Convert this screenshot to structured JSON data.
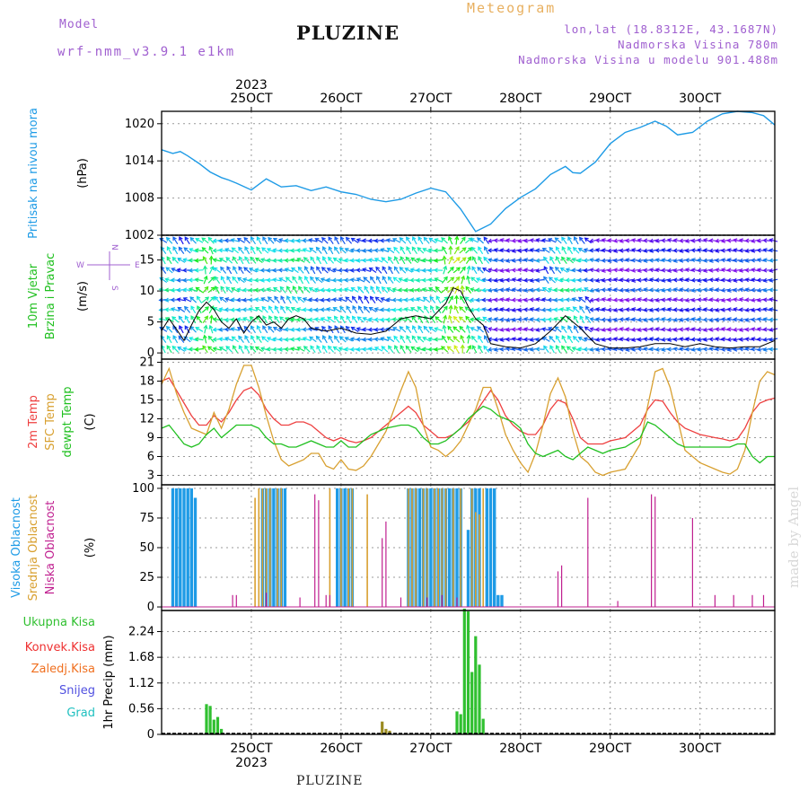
{
  "header": {
    "model_label": "Model",
    "model_name": "wrf-nmm_v3.9.1 e1km",
    "station": "PLUZINE",
    "meteogram_label": "Meteogram",
    "lonlat": "lon,lat (18.8312E, 43.1687N)",
    "elevation": "Nadmorska Visina 780m",
    "elevation_model": "Nadmorska Visina u modelu 901.488m"
  },
  "footer": {
    "station": "PLUZINE",
    "credit": "made by Angel"
  },
  "colors": {
    "pressure": "#1e9be6",
    "temp2m": "#ee4040",
    "sfc_temp": "#d8a030",
    "dewpoint": "#20c020",
    "high_cloud": "#1e9be6",
    "mid_cloud": "#d8a030",
    "low_cloud": "#c02090",
    "total_precip": "#30c030",
    "convective": "#ee3030",
    "frozen": "#f07020",
    "snow": "#5050e0",
    "graupel": "#20c0c0",
    "wind_title": "#20c020",
    "title_purple": "#a060d0"
  },
  "chart_data": [
    {
      "type": "line",
      "panel": "pressure",
      "ylabel_title": "Pritisak na nivou mora",
      "ylabel_unit": "(hPa)",
      "top_year": "2023",
      "x_ticks": [
        "25OCT",
        "26OCT",
        "27OCT",
        "28OCT",
        "29OCT",
        "30OCT"
      ],
      "x_tick_values": [
        24,
        48,
        72,
        96,
        120,
        144
      ],
      "xlim": [
        0,
        164
      ],
      "y_ticks": [
        1002,
        1008,
        1014,
        1020
      ],
      "ylim": [
        1002,
        1022
      ],
      "grid": true,
      "series": [
        {
          "x": [
            0,
            3,
            5,
            7,
            10,
            13,
            16,
            18,
            20,
            24,
            28,
            32,
            36,
            40,
            44,
            48,
            52,
            56,
            60,
            64,
            68,
            72,
            76,
            80,
            84,
            88,
            92,
            96,
            100,
            104,
            108,
            110,
            112,
            116,
            120,
            124,
            128,
            132,
            135,
            138,
            142,
            146,
            150,
            154,
            158,
            161,
            164
          ],
          "y": [
            1015.8,
            1015.2,
            1015.5,
            1014.8,
            1013.6,
            1012.2,
            1011.3,
            1010.9,
            1010.4,
            1009.3,
            1011.1,
            1009.8,
            1010.0,
            1009.2,
            1009.8,
            1009.0,
            1008.6,
            1007.8,
            1007.4,
            1007.8,
            1008.8,
            1009.6,
            1009.0,
            1006.2,
            1002.6,
            1003.8,
            1006.3,
            1008.1,
            1009.5,
            1011.8,
            1013.1,
            1012.1,
            1012.0,
            1013.8,
            1016.8,
            1018.6,
            1019.4,
            1020.4,
            1019.6,
            1018.2,
            1018.6,
            1020.4,
            1021.6,
            1022.0,
            1021.8,
            1021.3,
            1019.8
          ]
        }
      ]
    },
    {
      "type": "line",
      "panel": "wind",
      "ylabel_title": [
        "10m Vjetar",
        "Brzina i Pravac"
      ],
      "ylabel_unit": "(m/s)",
      "compass": {
        "n": "N",
        "s": "S",
        "w": "W",
        "e": "E"
      },
      "y_ticks": [
        0,
        5,
        10,
        15
      ],
      "ylim": [
        -1,
        19
      ],
      "grid": true,
      "series": [
        {
          "name": "speed",
          "x": [
            0,
            2,
            4,
            6,
            8,
            10,
            12,
            14,
            16,
            18,
            20,
            22,
            24,
            26,
            28,
            30,
            32,
            34,
            36,
            38,
            40,
            44,
            48,
            52,
            56,
            60,
            64,
            68,
            72,
            76,
            78,
            80,
            82,
            84,
            86,
            88,
            92,
            96,
            100,
            104,
            108,
            112,
            116,
            120,
            124,
            128,
            132,
            136,
            140,
            144,
            148,
            152,
            156,
            160,
            164
          ],
          "y": [
            3.6,
            5.5,
            3.8,
            2.0,
            4.5,
            6.8,
            8.2,
            7.0,
            5.0,
            4.0,
            5.5,
            3.2,
            5.0,
            6.0,
            4.5,
            5.0,
            4.0,
            5.5,
            6.0,
            5.5,
            4.0,
            3.5,
            4.0,
            3.2,
            3.0,
            3.5,
            5.5,
            6.0,
            5.5,
            8.0,
            10.5,
            10.0,
            7.5,
            5.5,
            4.5,
            1.5,
            1.0,
            0.8,
            1.5,
            3.5,
            6.0,
            4.0,
            1.5,
            0.8,
            0.8,
            1.0,
            1.5,
            1.5,
            1.0,
            1.5,
            1.0,
            0.8,
            1.0,
            1.0,
            2.0
          ]
        }
      ]
    },
    {
      "type": "line",
      "panel": "temperature",
      "ylabel_titles": [
        "2m Temp",
        "SFC Temp",
        "dewpt Temp"
      ],
      "ylabel_unit": "(C)",
      "y_ticks": [
        3,
        6,
        9,
        12,
        15,
        18,
        21
      ],
      "ylim": [
        1.5,
        21.5
      ],
      "grid": true,
      "series": [
        {
          "name": "2m Temp",
          "x": [
            0,
            2,
            4,
            6,
            8,
            10,
            12,
            14,
            16,
            18,
            20,
            22,
            24,
            26,
            28,
            30,
            32,
            34,
            36,
            38,
            40,
            42,
            44,
            46,
            48,
            50,
            52,
            54,
            56,
            60,
            64,
            66,
            68,
            70,
            72,
            74,
            76,
            78,
            80,
            82,
            84,
            86,
            88,
            90,
            92,
            94,
            96,
            98,
            100,
            102,
            104,
            106,
            108,
            110,
            112,
            114,
            116,
            118,
            120,
            124,
            128,
            130,
            132,
            134,
            136,
            138,
            140,
            144,
            148,
            150,
            152,
            154,
            156,
            158,
            160,
            162,
            164
          ],
          "y": [
            18,
            18.5,
            16.5,
            14.5,
            12.5,
            11,
            11,
            12.5,
            11.5,
            13,
            15,
            16.5,
            17,
            15.8,
            13.5,
            12,
            11,
            11,
            11.5,
            11.5,
            11,
            10,
            9,
            8.5,
            9,
            8.5,
            8.2,
            8.5,
            9,
            11,
            13,
            14,
            13,
            11,
            10,
            9,
            9,
            9.5,
            10.5,
            11.5,
            13,
            14.8,
            16.5,
            15,
            12.5,
            11,
            10,
            9.5,
            9.5,
            11,
            13.5,
            15,
            14.5,
            12,
            9,
            8,
            8,
            8,
            8.5,
            9,
            11,
            13.5,
            15,
            14.8,
            13,
            11.5,
            10.5,
            9.5,
            9,
            8.8,
            8.5,
            8.8,
            10.5,
            13,
            14.5,
            15,
            15.3
          ]
        },
        {
          "name": "SFC Temp",
          "x": [
            0,
            2,
            4,
            6,
            8,
            10,
            12,
            14,
            16,
            18,
            20,
            22,
            24,
            26,
            28,
            30,
            32,
            34,
            36,
            38,
            40,
            42,
            44,
            46,
            48,
            50,
            52,
            54,
            56,
            60,
            64,
            66,
            68,
            70,
            72,
            74,
            76,
            78,
            80,
            82,
            84,
            86,
            88,
            90,
            92,
            94,
            96,
            98,
            100,
            102,
            104,
            106,
            108,
            110,
            112,
            114,
            116,
            118,
            120,
            124,
            128,
            130,
            132,
            134,
            136,
            138,
            140,
            144,
            148,
            150,
            152,
            154,
            156,
            158,
            160,
            162,
            164
          ],
          "y": [
            17.5,
            20,
            16,
            13,
            10.5,
            10,
            9.5,
            13,
            10.5,
            13.5,
            17.5,
            20.5,
            20.5,
            17,
            12.5,
            8.5,
            5.5,
            4.5,
            5,
            5.5,
            6.5,
            6.5,
            4.5,
            4,
            5.5,
            4,
            3.8,
            4.5,
            6,
            10,
            16.5,
            19.5,
            17,
            11,
            7.5,
            7,
            6,
            7,
            8.5,
            11,
            13.5,
            17,
            17,
            13.5,
            9.5,
            7,
            5,
            3.5,
            6.5,
            11,
            16,
            18.5,
            15.5,
            10,
            6,
            5,
            3.5,
            3,
            3.5,
            4,
            8,
            14,
            19.5,
            20,
            17,
            12,
            7,
            5,
            4,
            3.5,
            3.2,
            4,
            7,
            13,
            18,
            19.5,
            19
          ]
        },
        {
          "name": "dewpt Temp",
          "x": [
            0,
            2,
            4,
            6,
            8,
            10,
            12,
            14,
            16,
            18,
            20,
            22,
            24,
            26,
            28,
            30,
            32,
            34,
            36,
            38,
            40,
            42,
            44,
            46,
            48,
            50,
            52,
            54,
            56,
            60,
            64,
            66,
            68,
            70,
            72,
            74,
            76,
            78,
            80,
            82,
            84,
            86,
            88,
            90,
            92,
            94,
            96,
            98,
            100,
            102,
            104,
            106,
            108,
            110,
            112,
            114,
            116,
            118,
            120,
            124,
            128,
            130,
            132,
            134,
            136,
            138,
            140,
            144,
            148,
            150,
            152,
            154,
            156,
            158,
            160,
            162,
            164
          ],
          "y": [
            10.5,
            11,
            9.5,
            8,
            7.5,
            8,
            9.5,
            10.5,
            9,
            10,
            11,
            11,
            11,
            10.5,
            9,
            8,
            8,
            7.5,
            7.5,
            8,
            8.5,
            8,
            7.5,
            7.5,
            8.5,
            7.5,
            7.5,
            8.5,
            9.5,
            10.5,
            11,
            11,
            10.5,
            9,
            8,
            8,
            8.5,
            9.5,
            10.5,
            12,
            13,
            14,
            13.5,
            12.5,
            12,
            11.5,
            10.5,
            8,
            6.5,
            6,
            6.5,
            7,
            6,
            5.5,
            6.5,
            7.5,
            7,
            6.5,
            7,
            7.5,
            9,
            11.5,
            11,
            10,
            9,
            8,
            7.5,
            7.5,
            7.5,
            7.5,
            7.5,
            8,
            8,
            6,
            5,
            6,
            6
          ]
        }
      ]
    },
    {
      "type": "bar",
      "panel": "cloud",
      "ylabel_titles": [
        "Visoka Oblacnost",
        "Srednja Oblacnost",
        "Niska Oblacnost"
      ],
      "ylabel_unit": "(%)",
      "y_ticks": [
        0,
        25,
        50,
        75,
        100
      ],
      "ylim": [
        -3,
        103
      ],
      "grid": true,
      "series": [
        {
          "name": "Visoka Oblacnost",
          "x": [
            3,
            4,
            5,
            6,
            7,
            8,
            9,
            27,
            28,
            29,
            30,
            31,
            32,
            33,
            47,
            48,
            49,
            50,
            51,
            66,
            67,
            68,
            69,
            70,
            71,
            72,
            73,
            74,
            75,
            76,
            77,
            78,
            79,
            80,
            82,
            83,
            84,
            85,
            87,
            88,
            89,
            90,
            91
          ],
          "y": [
            100,
            100,
            100,
            100,
            100,
            100,
            92,
            100,
            100,
            100,
            100,
            100,
            100,
            100,
            100,
            100,
            100,
            100,
            100,
            100,
            100,
            100,
            100,
            100,
            100,
            100,
            100,
            100,
            100,
            100,
            100,
            100,
            100,
            100,
            65,
            100,
            100,
            100,
            100,
            100,
            100,
            10,
            10
          ]
        },
        {
          "name": "Srednja Oblacnost",
          "x": [
            25,
            26,
            27,
            28,
            29,
            31,
            32,
            45,
            48,
            50,
            51,
            55,
            66,
            67,
            68,
            70,
            71,
            73,
            74,
            75,
            76,
            78,
            80,
            83,
            84,
            85,
            86
          ],
          "y": [
            92,
            100,
            100,
            100,
            100,
            100,
            100,
            100,
            100,
            100,
            100,
            95,
            100,
            100,
            100,
            100,
            100,
            100,
            100,
            100,
            100,
            100,
            100,
            100,
            80,
            78,
            100
          ]
        },
        {
          "name": "Niska Oblacnost",
          "x": [
            19,
            20,
            28,
            37,
            41,
            42,
            44,
            45,
            59,
            60,
            64,
            71,
            75,
            79,
            106,
            107,
            114,
            122,
            131,
            132,
            142,
            148,
            153,
            158,
            161
          ],
          "y": [
            10,
            10,
            12,
            8,
            95,
            90,
            10,
            10,
            58,
            72,
            8,
            8,
            10,
            8,
            30,
            35,
            92,
            5,
            95,
            93,
            75,
            10,
            10,
            10,
            10
          ]
        }
      ]
    },
    {
      "type": "bar",
      "panel": "precip",
      "ylabel_titles": [
        "Ukupna Kisa",
        "Konvek.Kisa",
        "Zaledj.Kisa",
        "Snijeg",
        "Grad"
      ],
      "ylabel_unit": "1hr Precip (mm)",
      "bottom_year": "2023",
      "y_ticks": [
        0,
        0.56,
        1.12,
        1.68,
        2.24
      ],
      "y_tick_labels": [
        "0",
        "0.56",
        "1.12",
        "1.68",
        "2.24"
      ],
      "ylim": [
        0,
        2.7
      ],
      "grid": true,
      "series": [
        {
          "name": "Ukupna Kisa",
          "x": [
            12,
            13,
            14,
            15,
            16,
            79,
            80,
            81,
            82,
            83,
            84,
            85,
            86
          ],
          "y": [
            0.66,
            0.62,
            0.32,
            0.38,
            0.12,
            0.5,
            0.44,
            2.74,
            2.68,
            1.36,
            2.14,
            1.52,
            0.34
          ]
        },
        {
          "name": "Zaledj.Kisa",
          "x": [
            59,
            60,
            61
          ],
          "y": [
            0.28,
            0.12,
            0.08
          ]
        }
      ]
    }
  ]
}
